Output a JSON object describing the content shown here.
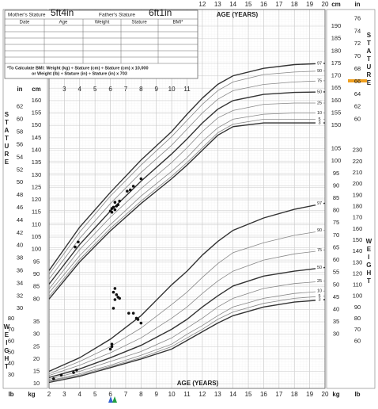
{
  "form": {
    "mother_label": "Mother's Stature",
    "mother_value": "5ft4in",
    "father_label": "Father's Stature",
    "father_value": "6ft1in",
    "headers": [
      "Date",
      "Age",
      "Weight",
      "Stature",
      "BMI*"
    ],
    "bmi_note": [
      "*To Calculate BMI: Weight (kg) ÷ Stature (cm) ÷ Stature (cm) x 10,000",
      "or Weight (lb) ÷ Stature (in) ÷ Stature (in) x 703"
    ]
  },
  "chart_data": [
    {
      "type": "line",
      "ylabel": "STATURE",
      "xlabel": "AGE (YEARS)",
      "y_unit": "cm",
      "y2_unit": "in",
      "xlim": [
        2,
        20
      ],
      "xticks_top": [
        12,
        13,
        14,
        15,
        16,
        17,
        18,
        19,
        20
      ],
      "xticks_inner": [
        3,
        4,
        5,
        6,
        7,
        8,
        9,
        10,
        11
      ],
      "ylim": [
        44,
        196.7
      ],
      "yticks_left": [
        80,
        85,
        90,
        95,
        100,
        105,
        110,
        115,
        120,
        125,
        130,
        135,
        140,
        145,
        150,
        155,
        160
      ],
      "yticks_right": [
        150,
        155,
        160,
        165,
        170,
        175,
        180,
        185,
        190
      ],
      "y2lim": [
        17.32,
        77.44
      ],
      "y2ticks_left": [
        30,
        32,
        34,
        36,
        38,
        40,
        42,
        44,
        46,
        48,
        50,
        52,
        54,
        56,
        58,
        60,
        62
      ],
      "y2ticks_right": [
        60,
        62,
        64,
        66,
        68,
        70,
        72,
        74,
        76
      ],
      "x": [
        2,
        4,
        6,
        8,
        10,
        11,
        12,
        13,
        14,
        16,
        18,
        20
      ],
      "series": [
        {
          "name": "97",
          "color": "#333333",
          "values": [
            91.5,
            109,
            123,
            136,
            147.5,
            154.5,
            161,
            166.5,
            170,
            173,
            174.5,
            175
          ]
        },
        {
          "name": "90",
          "color": "#888888",
          "values": [
            90,
            107,
            121.5,
            134,
            145.5,
            152,
            158.5,
            164,
            167.5,
            170.5,
            171.5,
            172
          ]
        },
        {
          "name": "75",
          "color": "#888888",
          "values": [
            88,
            104.5,
            118.5,
            131,
            142,
            148.5,
            155,
            160.5,
            164,
            166.5,
            167.5,
            168
          ]
        },
        {
          "name": "50",
          "color": "#333333",
          "values": [
            86,
            102,
            115.5,
            127.5,
            138.5,
            144.5,
            151,
            156.5,
            160,
            162.5,
            163.3,
            163.5
          ]
        },
        {
          "name": "25",
          "color": "#888888",
          "values": [
            84,
            100,
            113,
            124.5,
            135,
            141,
            147.5,
            153,
            156,
            158.5,
            159,
            159
          ]
        },
        {
          "name": "10",
          "color": "#888888",
          "values": [
            82.5,
            97.5,
            110,
            121.5,
            131.5,
            137,
            143.5,
            149,
            152.5,
            154.5,
            155,
            155
          ]
        },
        {
          "name": "5",
          "color": "#888888",
          "values": [
            81,
            96,
            108.5,
            119.5,
            129.5,
            135,
            141,
            147,
            150.5,
            152.5,
            152.5,
            152.5
          ]
        },
        {
          "name": "3",
          "color": "#333333",
          "values": [
            80,
            95,
            107.5,
            118.5,
            128.5,
            134,
            140,
            146,
            149.5,
            151,
            151,
            151
          ]
        }
      ],
      "points": {
        "color": "#111111",
        "x": [
          3.7,
          3.9,
          6.0,
          6.1,
          6.2,
          6.3,
          6.4,
          6.5,
          6.6,
          6.3,
          6.1,
          7.1,
          7.3,
          7.5,
          8.0
        ],
        "values": [
          101,
          103,
          115.5,
          116.5,
          117,
          116,
          117.5,
          118,
          119.5,
          119,
          115,
          123.5,
          124,
          125.5,
          128.5
        ]
      }
    },
    {
      "type": "line",
      "ylabel": "WEIGHT",
      "xlabel": "AGE (YEARS)",
      "y_unit": "kg",
      "y2_unit": "lb",
      "xlim": [
        2,
        20
      ],
      "xticks": [
        2,
        3,
        4,
        5,
        6,
        7,
        8,
        9,
        10,
        11,
        12,
        13,
        14,
        15,
        16,
        17,
        18,
        19,
        20
      ],
      "ylim": [
        8.1,
        161.3
      ],
      "yticks_left": [
        10,
        15,
        20,
        25,
        30,
        35
      ],
      "yticks_right": [
        30,
        35,
        40,
        45,
        50,
        55,
        60,
        65,
        70,
        75,
        80,
        85,
        90,
        95,
        100,
        105
      ],
      "y2lim": [
        17.86,
        355.6
      ],
      "y2ticks_left": [
        30,
        40,
        50,
        60,
        70,
        80
      ],
      "y2ticks_right": [
        60,
        70,
        80,
        90,
        100,
        110,
        120,
        130,
        140,
        150,
        160,
        170,
        180,
        190,
        200,
        210,
        220,
        230
      ],
      "x": [
        2,
        4,
        6,
        8,
        10,
        11,
        12,
        13,
        14,
        16,
        18,
        20
      ],
      "series": [
        {
          "name": "97",
          "color": "#333333",
          "values": [
            15,
            20.5,
            28,
            37.5,
            50,
            55.5,
            62,
            67.5,
            72,
            77,
            80.5,
            83
          ]
        },
        {
          "name": "90",
          "color": "#888888",
          "values": [
            14,
            19,
            25,
            32.5,
            42,
            47,
            53,
            58.5,
            63,
            67,
            70,
            72
          ]
        },
        {
          "name": "75",
          "color": "#888888",
          "values": [
            13.3,
            17.5,
            22.5,
            28.5,
            36.5,
            41,
            46.5,
            51.5,
            55.5,
            60,
            62.5,
            64
          ]
        },
        {
          "name": "50",
          "color": "#333333",
          "values": [
            12.5,
            16,
            20.5,
            25.5,
            32,
            36,
            41,
            45.5,
            49.5,
            53.5,
            55.5,
            57
          ]
        },
        {
          "name": "25",
          "color": "#888888",
          "values": [
            11.8,
            15,
            19,
            23,
            28.5,
            32.5,
            36.5,
            41,
            44.5,
            48.5,
            50.5,
            51.5
          ]
        },
        {
          "name": "10",
          "color": "#888888",
          "values": [
            11.2,
            14,
            17.5,
            21.5,
            26,
            30,
            33.5,
            37.5,
            41,
            44.5,
            46.5,
            47.5
          ]
        },
        {
          "name": "5",
          "color": "#888888",
          "values": [
            11,
            13.5,
            17,
            20.5,
            25,
            28.5,
            32,
            36,
            39,
            42.5,
            44.5,
            45.5
          ]
        },
        {
          "name": "3",
          "color": "#333333",
          "values": [
            10.5,
            13,
            16.5,
            20,
            24,
            27.5,
            31,
            34.5,
            37.5,
            41,
            43,
            44
          ]
        }
      ],
      "points": {
        "color": "#111111",
        "x": [
          2.3,
          2.8,
          3.6,
          3.8,
          6.0,
          6.1,
          6.1,
          6.2,
          6.3,
          6.4,
          6.5,
          6.6,
          6.3,
          6.2,
          7.2,
          7.5,
          7.8,
          8.0,
          7.7
        ],
        "values": [
          12,
          13.5,
          14.5,
          15.5,
          24,
          25,
          26,
          47,
          48.5,
          46,
          45,
          44.5,
          44,
          40.5,
          38.5,
          38.5,
          36,
          34.5,
          36.5
        ]
      }
    }
  ]
}
